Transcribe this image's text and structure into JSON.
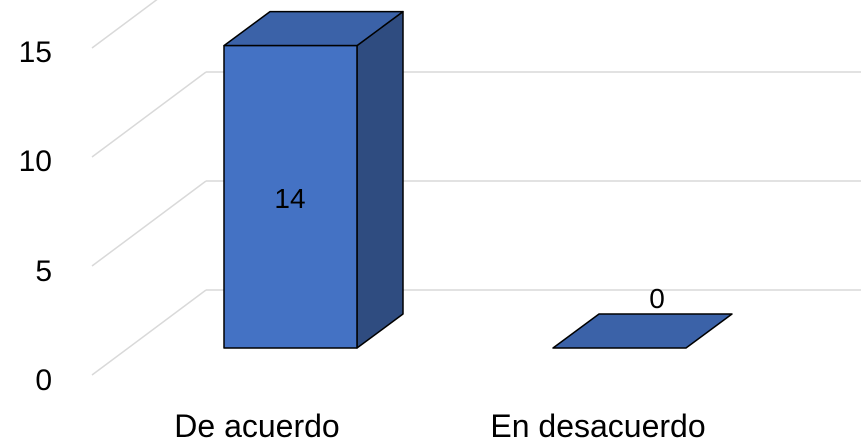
{
  "chart_data": {
    "type": "bar",
    "style": "3d-column",
    "categories": [
      "De acuerdo",
      "En desacuerdo"
    ],
    "values": [
      14,
      0
    ],
    "data_labels": [
      "14",
      "0"
    ],
    "ylim": [
      0,
      15
    ],
    "yticks": [
      "0",
      "5",
      "10",
      "15"
    ],
    "grid": true,
    "legend": "none",
    "colors": {
      "bar_front": "#4472C4",
      "bar_side": "#2F4C80",
      "bar_top": "#3B62A8",
      "bar_outline": "#000000",
      "gridline": "#D9D9D9"
    }
  }
}
